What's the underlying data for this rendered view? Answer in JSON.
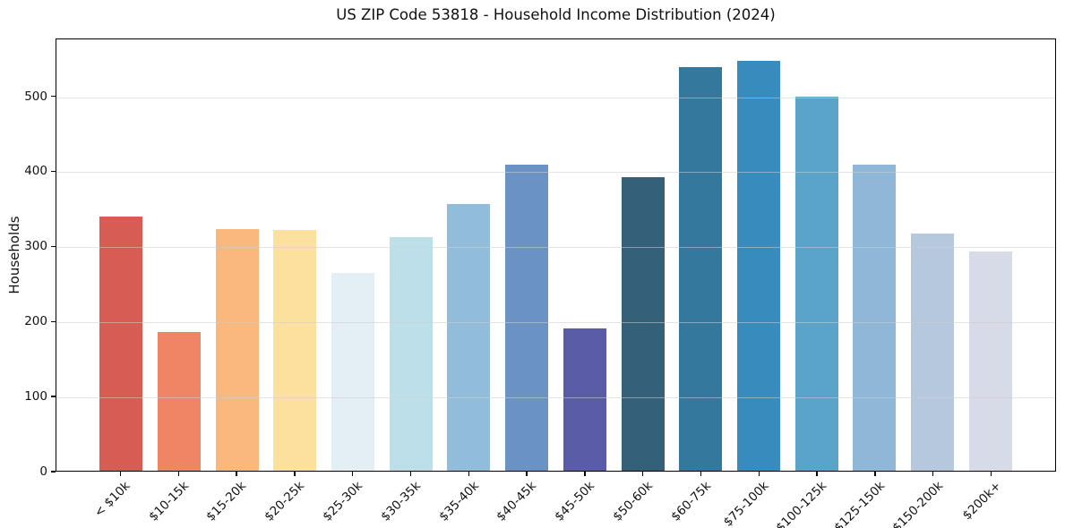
{
  "chart_data": {
    "type": "bar",
    "title": "US ZIP Code 53818 - Household Income Distribution (2024)",
    "xlabel": "",
    "ylabel": "Households",
    "categories": [
      "< $10k",
      "$10-15k",
      "$15-20k",
      "$20-25k",
      "$25-30k",
      "$30-35k",
      "$35-40k",
      "$40-45k",
      "$45-50k",
      "$50-60k",
      "$60-75k",
      "$75-100k",
      "$100-125k",
      "$125-150k",
      "$150-200k",
      "$200k+"
    ],
    "values": [
      340,
      185,
      323,
      322,
      264,
      313,
      357,
      410,
      190,
      393,
      540,
      548,
      501,
      409,
      317,
      293
    ],
    "bar_colors": [
      "#d75d54",
      "#f08566",
      "#fab87d",
      "#fbe19d",
      "#e3eff5",
      "#bcdfe9",
      "#92bdda",
      "#6b92c4",
      "#5a5ca8",
      "#35607a",
      "#35789e",
      "#388cbd",
      "#5ba4c9",
      "#8fb7d7",
      "#b6c8de",
      "#d7dae7",
      "#_ignore"
    ],
    "yticks": [
      0,
      100,
      200,
      300,
      400,
      500
    ],
    "ylim": [
      0,
      577
    ],
    "grid": "horizontal",
    "legend": "none",
    "background_color": "#ffffff",
    "spine_color": "#000000",
    "text_color": "#111111"
  }
}
